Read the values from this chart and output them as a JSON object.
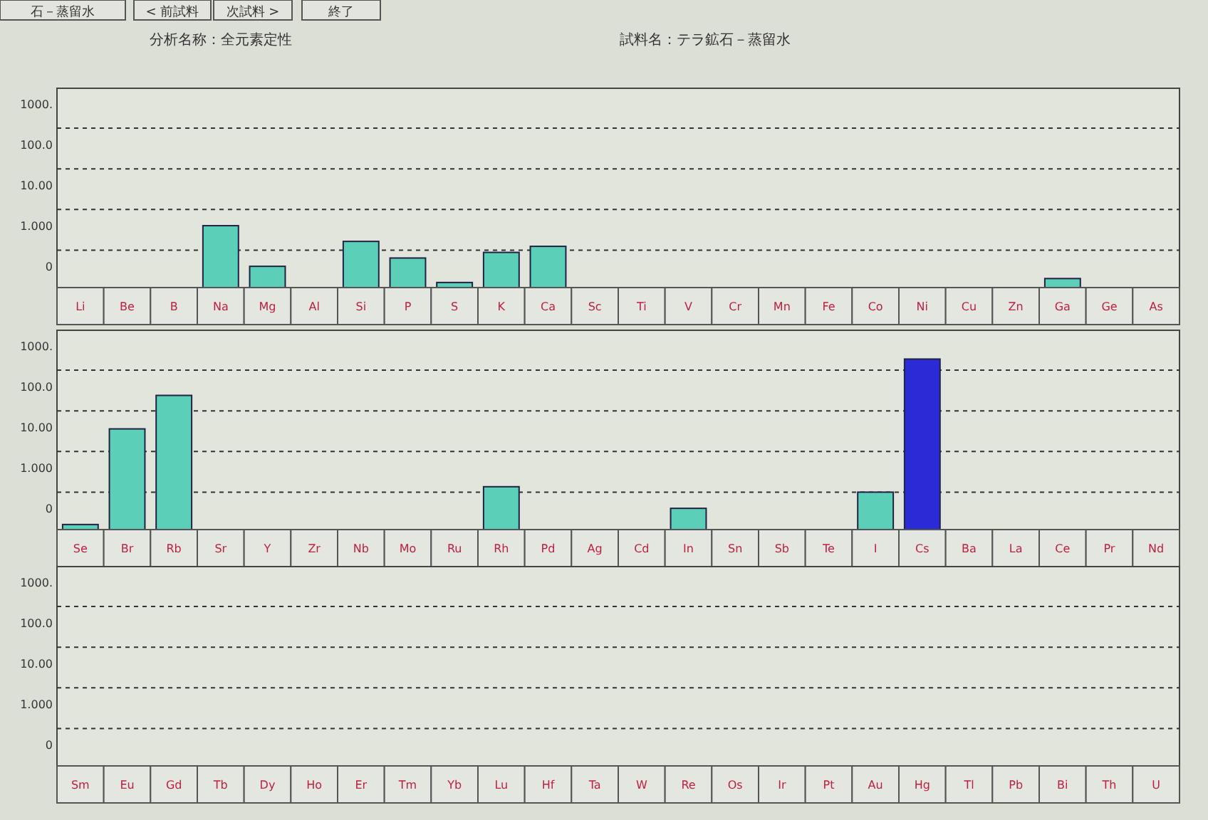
{
  "chart_data": [
    {
      "type": "bar",
      "title": "分析名称：全元素定性",
      "subtitle": "試料名：テラ鉱石－蒸留水",
      "annotations": [
        "石－蒸留水",
        "< 前試料",
        "次試料 >",
        "終了"
      ],
      "categories": [
        "Li",
        "Be",
        "B",
        "Na",
        "Mg",
        "Al",
        "Si",
        "P",
        "S",
        "K",
        "Ca",
        "Sc",
        "Ti",
        "V",
        "Cr",
        "Mn",
        "Fe",
        "Co",
        "Ni",
        "Cu",
        "Zn",
        "Ga",
        "Ge",
        "As"
      ],
      "values": [
        null,
        null,
        null,
        1.0,
        0.1,
        null,
        0.41,
        0.16,
        0.04,
        0.22,
        0.31,
        null,
        null,
        null,
        null,
        null,
        null,
        null,
        null,
        null,
        null,
        0.05,
        null,
        null
      ],
      "colors": [
        null,
        null,
        null,
        "#5ccfb8",
        "#5ccfb8",
        null,
        "#5ccfb8",
        "#5ccfb8",
        "#5ccfb8",
        "#5ccfb8",
        "#5ccfb8",
        null,
        null,
        null,
        null,
        null,
        null,
        null,
        null,
        null,
        null,
        "#5ccfb8",
        null,
        null
      ],
      "log": "y",
      "ylim": [
        0.03,
        2400
      ],
      "yticks": [
        {
          "value": 1000,
          "label": "1000."
        },
        {
          "value": 100,
          "label": "100.0"
        },
        {
          "value": 10,
          "label": "10.00"
        },
        {
          "value": 1,
          "label": "1.000"
        },
        {
          "value": 0.1,
          "label": "0"
        }
      ],
      "ref_lines": [
        {
          "axis": "y",
          "value": 250,
          "line_style": "dashed"
        },
        {
          "axis": "y",
          "value": 25,
          "line_style": "dashed"
        },
        {
          "axis": "y",
          "value": 2.5,
          "line_style": "dashed"
        },
        {
          "axis": "y",
          "value": 0.25,
          "line_style": "dashed"
        }
      ]
    },
    {
      "type": "bar",
      "categories": [
        "Se",
        "Br",
        "Rb",
        "Sr",
        "Y",
        "Zr",
        "Nb",
        "Mo",
        "Ru",
        "Rh",
        "Pd",
        "Ag",
        "Cd",
        "In",
        "Sn",
        "Sb",
        "Te",
        "I",
        "Cs",
        "Ba",
        "La",
        "Ce",
        "Pr",
        "Nd"
      ],
      "values": [
        0.04,
        9,
        60,
        null,
        null,
        null,
        null,
        null,
        null,
        0.34,
        null,
        null,
        null,
        0.1,
        null,
        null,
        null,
        0.25,
        470,
        null,
        null,
        null,
        null,
        null
      ],
      "colors": [
        "#5ccfb8",
        "#5ccfb8",
        "#5ccfb8",
        null,
        null,
        null,
        null,
        null,
        null,
        "#5ccfb8",
        null,
        null,
        null,
        "#5ccfb8",
        null,
        null,
        null,
        "#5ccfb8",
        "#2a2ad6",
        null,
        null,
        null,
        null,
        null
      ],
      "log": "y",
      "ylim": [
        0.03,
        2400
      ],
      "yticks": [
        {
          "value": 1000,
          "label": "1000."
        },
        {
          "value": 100,
          "label": "100.0"
        },
        {
          "value": 10,
          "label": "10.00"
        },
        {
          "value": 1,
          "label": "1.000"
        },
        {
          "value": 0.1,
          "label": "0"
        }
      ],
      "ref_lines": [
        {
          "axis": "y",
          "value": 250,
          "line_style": "dashed"
        },
        {
          "axis": "y",
          "value": 25,
          "line_style": "dashed"
        },
        {
          "axis": "y",
          "value": 2.5,
          "line_style": "dashed"
        },
        {
          "axis": "y",
          "value": 0.25,
          "line_style": "dashed"
        }
      ]
    },
    {
      "type": "bar",
      "categories": [
        "Sm",
        "Eu",
        "Gd",
        "Tb",
        "Dy",
        "Ho",
        "Er",
        "Tm",
        "Yb",
        "Lu",
        "Hf",
        "Ta",
        "W",
        "Re",
        "Os",
        "Ir",
        "Pt",
        "Au",
        "Hg",
        "Tl",
        "Pb",
        "Bi",
        "Th",
        "U"
      ],
      "values": [
        null,
        null,
        null,
        null,
        null,
        null,
        null,
        null,
        null,
        null,
        null,
        null,
        null,
        null,
        null,
        null,
        null,
        null,
        null,
        null,
        null,
        null,
        null,
        null
      ],
      "log": "y",
      "ylim": [
        0.03,
        2400
      ],
      "yticks": [
        {
          "value": 1000,
          "label": "1000."
        },
        {
          "value": 100,
          "label": "100.0"
        },
        {
          "value": 10,
          "label": "10.00"
        },
        {
          "value": 1,
          "label": "1.000"
        },
        {
          "value": 0.1,
          "label": "0"
        }
      ],
      "ref_lines": [
        {
          "axis": "y",
          "value": 250,
          "line_style": "dashed"
        },
        {
          "axis": "y",
          "value": 25,
          "line_style": "dashed"
        },
        {
          "axis": "y",
          "value": 2.5,
          "line_style": "dashed"
        },
        {
          "axis": "y",
          "value": 0.25,
          "line_style": "dashed"
        }
      ]
    }
  ]
}
